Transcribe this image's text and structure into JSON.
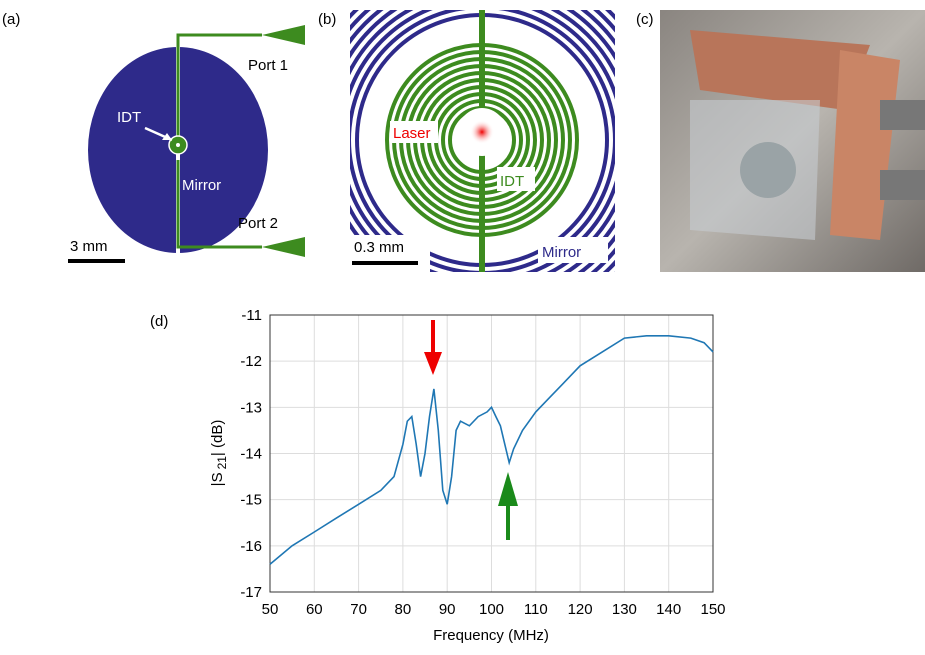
{
  "panels": [
    {
      "label": "(a)",
      "idt": "IDT",
      "mirror": "Mirror",
      "port1": "Port 1",
      "port2": "Port 2",
      "scale": "3 mm"
    },
    {
      "label": "(b)",
      "laser": "Laser",
      "idt": "IDT",
      "scale": "0.3 mm",
      "mirror": "Mirror"
    },
    {
      "label": "(c)"
    }
  ],
  "chart_data": {
    "type": "line",
    "panel_label": "(d)",
    "xlabel": "Frequency (MHz)",
    "ylabel": [
      "|S",
      "21",
      "| (dB)"
    ],
    "x": [
      50,
      55,
      60,
      65,
      70,
      75,
      78,
      80,
      81,
      82,
      83,
      84,
      85,
      86,
      87,
      88,
      89,
      90,
      91,
      92,
      93,
      95,
      97,
      99,
      100,
      101,
      102,
      103,
      104,
      105,
      107,
      110,
      113,
      116,
      120,
      125,
      130,
      135,
      140,
      145,
      148,
      150
    ],
    "series": [
      {
        "name": "S21",
        "color": "#1f77b4",
        "values": [
          -16.4,
          -16.0,
          -15.7,
          -15.4,
          -15.1,
          -14.8,
          -14.5,
          -13.8,
          -13.3,
          -13.2,
          -13.8,
          -14.5,
          -14.0,
          -13.2,
          -12.6,
          -13.5,
          -14.8,
          -15.1,
          -14.5,
          -13.5,
          -13.3,
          -13.4,
          -13.2,
          -13.1,
          -13.0,
          -13.2,
          -13.4,
          -13.8,
          -14.2,
          -13.9,
          -13.5,
          -13.1,
          -12.8,
          -12.5,
          -12.1,
          -11.8,
          -11.5,
          -11.45,
          -11.45,
          -11.5,
          -11.6,
          -11.8
        ]
      }
    ],
    "xlim": [
      50,
      150
    ],
    "xticks": [
      50,
      60,
      70,
      80,
      90,
      100,
      110,
      120,
      130,
      140,
      150
    ],
    "ylim": [
      -17,
      -11
    ],
    "yticks": [
      -17,
      -16,
      -15,
      -14,
      -13,
      -12,
      -11
    ],
    "grid": true
  }
}
